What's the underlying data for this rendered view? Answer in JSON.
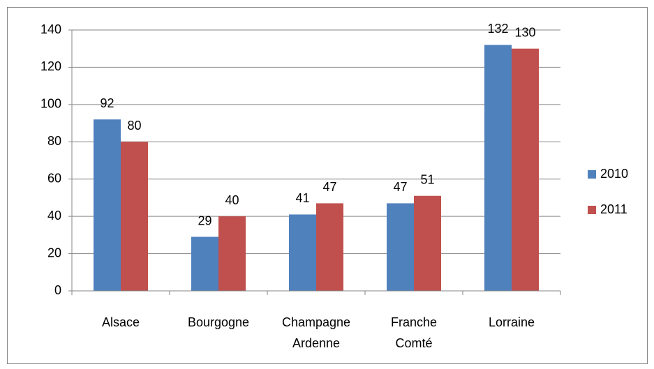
{
  "chart_data": {
    "type": "bar",
    "categories": [
      "Alsace",
      "Bourgogne",
      "Champagne Ardenne",
      "Franche Comté",
      "Lorraine"
    ],
    "series": [
      {
        "name": "2010",
        "color": "#4f81bd",
        "values": [
          92,
          29,
          41,
          47,
          132
        ]
      },
      {
        "name": "2011",
        "color": "#c0504d",
        "values": [
          80,
          40,
          47,
          51,
          130
        ]
      }
    ],
    "ylim": [
      0,
      140
    ],
    "yticks": [
      0,
      20,
      40,
      60,
      80,
      100,
      120,
      140
    ],
    "grid": true,
    "legend": "right"
  }
}
